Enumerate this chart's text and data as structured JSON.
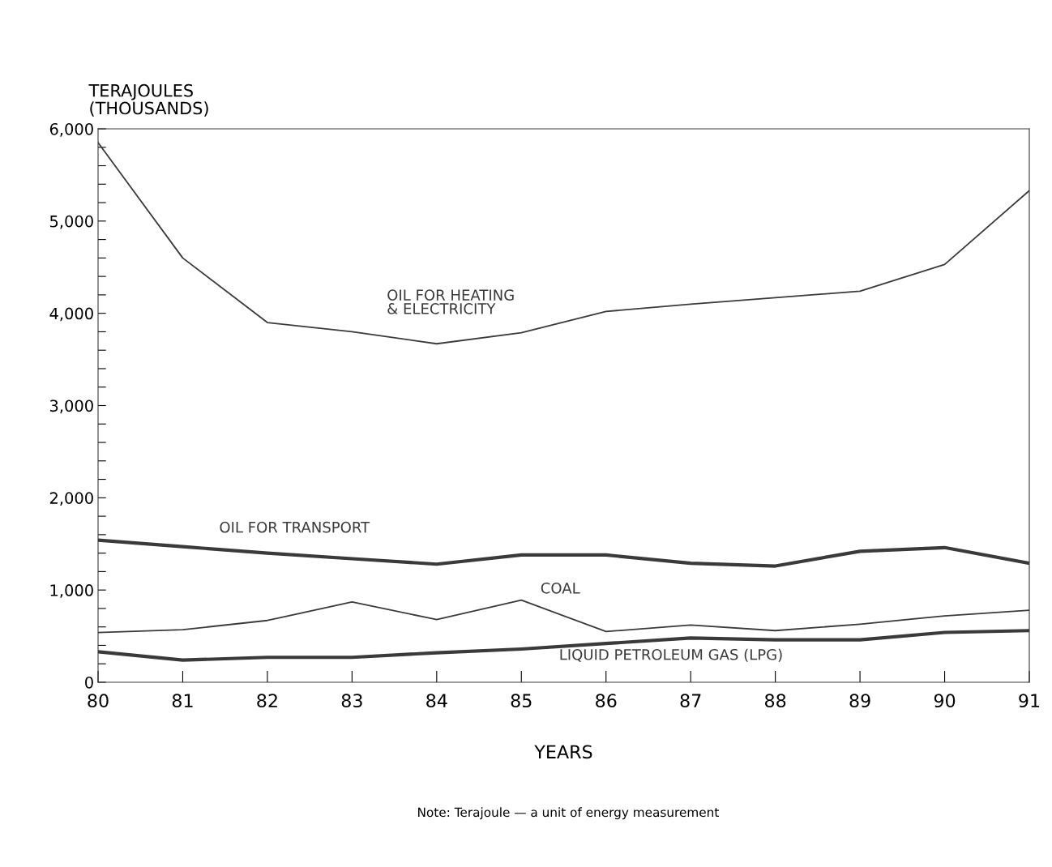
{
  "chart_data": {
    "type": "line",
    "ylabel": "TERAJOULES\n(THOUSANDS)",
    "xlabel": "YEARS",
    "annotations": [
      "Note: Terajoule — a unit of energy measurement"
    ],
    "x": [
      80,
      81,
      82,
      83,
      84,
      85,
      86,
      87,
      88,
      89,
      90,
      91
    ],
    "series": [
      {
        "name": "OIL FOR HEATING\n& ELECTRICITY",
        "color": "#3a3a3a",
        "values": [
          5850,
          4600,
          3900,
          3800,
          3670,
          3790,
          4020,
          4100,
          4170,
          4240,
          4530,
          5330
        ]
      },
      {
        "name": "OIL FOR TRANSPORT",
        "color": "#3a3a3a",
        "values": [
          1540,
          1470,
          1400,
          1340,
          1280,
          1380,
          1380,
          1290,
          1260,
          1420,
          1460,
          1290
        ]
      },
      {
        "name": "COAL",
        "color": "#3a3a3a",
        "values": [
          540,
          570,
          670,
          870,
          680,
          890,
          550,
          620,
          560,
          630,
          720,
          780
        ]
      },
      {
        "name": "LIQUID PETROLEUM GAS (LPG)",
        "color": "#3a3a3a",
        "values": [
          330,
          240,
          270,
          270,
          320,
          360,
          420,
          480,
          460,
          460,
          540,
          560
        ]
      }
    ],
    "xlim": [
      80,
      91
    ],
    "ylim": [
      0,
      6000
    ],
    "xticks": [
      80,
      81,
      82,
      83,
      84,
      85,
      86,
      87,
      88,
      89,
      90,
      91
    ],
    "yticks": [
      {
        "value": 0,
        "label": "0"
      },
      {
        "value": 200,
        "label": null
      },
      {
        "value": 400,
        "label": null
      },
      {
        "value": 600,
        "label": null
      },
      {
        "value": 800,
        "label": null
      },
      {
        "value": 1000,
        "label": "1,000"
      },
      {
        "value": 1200,
        "label": null
      },
      {
        "value": 1400,
        "label": null
      },
      {
        "value": 1600,
        "label": null
      },
      {
        "value": 1800,
        "label": null
      },
      {
        "value": 2000,
        "label": "2,000"
      },
      {
        "value": 2200,
        "label": null
      },
      {
        "value": 2400,
        "label": null
      },
      {
        "value": 2600,
        "label": null
      },
      {
        "value": 2800,
        "label": null
      },
      {
        "value": 3000,
        "label": "3,000"
      },
      {
        "value": 3200,
        "label": null
      },
      {
        "value": 3400,
        "label": null
      },
      {
        "value": 3600,
        "label": null
      },
      {
        "value": 3800,
        "label": null
      },
      {
        "value": 4000,
        "label": "4,000"
      },
      {
        "value": 4200,
        "label": null
      },
      {
        "value": 4400,
        "label": null
      },
      {
        "value": 4600,
        "label": null
      },
      {
        "value": 4800,
        "label": null
      },
      {
        "value": 5000,
        "label": "5,000"
      },
      {
        "value": 5200,
        "label": null
      },
      {
        "value": 5400,
        "label": null
      },
      {
        "value": 5600,
        "label": null
      },
      {
        "value": 5800,
        "label": null
      },
      {
        "value": 6000,
        "label": "6,000"
      }
    ],
    "grid": false,
    "legend": false,
    "line_style": "solid",
    "marker": "none"
  }
}
